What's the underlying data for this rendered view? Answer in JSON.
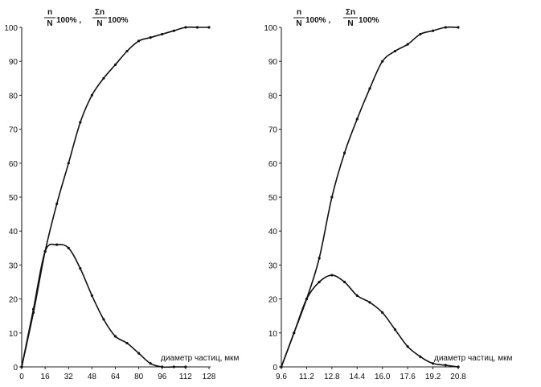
{
  "chart_data": [
    {
      "type": "line",
      "title": "",
      "ylabel_parts": {
        "frac1_num": "n",
        "frac1_den": "N",
        "frac1_suffix": "100% ,",
        "frac2_num": "Σn",
        "frac2_den": "N",
        "frac2_suffix": "100%"
      },
      "xlabel": "диаметр частиц, мкм",
      "ylabel": "",
      "xlim": [
        0,
        128
      ],
      "ylim": [
        0,
        100
      ],
      "xticks": [
        0,
        16,
        32,
        48,
        64,
        80,
        96,
        112,
        128
      ],
      "xtick_labels": [
        "0",
        "16",
        "32",
        "48",
        "64",
        "80",
        "96",
        "112",
        "128"
      ],
      "yticks": [
        0,
        10,
        20,
        30,
        40,
        50,
        60,
        70,
        80,
        90,
        100
      ],
      "ytick_labels": [
        "0",
        "10",
        "20",
        "30",
        "40",
        "50",
        "60",
        "70",
        "80",
        "90",
        "100"
      ],
      "series": [
        {
          "key": "cumulative",
          "x": [
            0,
            8,
            16,
            24,
            32,
            40,
            48,
            56,
            64,
            72,
            80,
            88,
            96,
            104,
            112,
            120,
            128
          ],
          "y": [
            0,
            16,
            34,
            48,
            60,
            72,
            80,
            85,
            89,
            93,
            96,
            97,
            98,
            99,
            100,
            100,
            100
          ]
        },
        {
          "key": "differential",
          "x": [
            0,
            8,
            16,
            24,
            32,
            40,
            48,
            56,
            64,
            72,
            80,
            88,
            96,
            104,
            112
          ],
          "y": [
            0,
            17,
            34,
            36,
            35,
            29,
            21,
            14,
            9,
            7,
            4,
            1,
            0,
            0,
            0
          ]
        }
      ]
    },
    {
      "type": "line",
      "title": "",
      "ylabel_parts": {
        "frac1_num": "n",
        "frac1_den": "N",
        "frac1_suffix": "100% ,",
        "frac2_num": "Σn",
        "frac2_den": "N",
        "frac2_suffix": "100%"
      },
      "xlabel": "диаметр частиц, мкм",
      "ylabel": "",
      "xlim": [
        9.6,
        20.8
      ],
      "ylim": [
        0,
        100
      ],
      "xticks": [
        9.6,
        11.2,
        12.8,
        14.4,
        16.0,
        17.6,
        19.2,
        20.8
      ],
      "xtick_labels": [
        "9.6",
        "11.2",
        "12.8",
        "14.4",
        "16.0",
        "17.6",
        "19.2",
        "20.8"
      ],
      "yticks": [
        0,
        10,
        20,
        30,
        40,
        50,
        60,
        70,
        80,
        90,
        100
      ],
      "ytick_labels": [
        "0",
        "10",
        "20",
        "30",
        "40",
        "50",
        "60",
        "70",
        "80",
        "90",
        "100"
      ],
      "series": [
        {
          "key": "cumulative",
          "x": [
            9.6,
            10.4,
            11.2,
            12.0,
            12.8,
            13.6,
            14.4,
            15.2,
            16.0,
            16.8,
            17.6,
            18.4,
            19.2,
            20.0,
            20.8
          ],
          "y": [
            0,
            10,
            20,
            32,
            50,
            63,
            73,
            82,
            90,
            93,
            95,
            98,
            99,
            100,
            100
          ]
        },
        {
          "key": "differential",
          "x": [
            9.6,
            10.4,
            11.2,
            12.0,
            12.8,
            13.6,
            14.4,
            15.2,
            16.0,
            16.8,
            17.6,
            18.4,
            19.2,
            20.0,
            20.8
          ],
          "y": [
            0,
            10,
            20,
            25,
            27,
            25,
            21,
            19,
            16,
            11,
            6,
            3,
            1,
            0.5,
            0
          ]
        }
      ]
    }
  ]
}
